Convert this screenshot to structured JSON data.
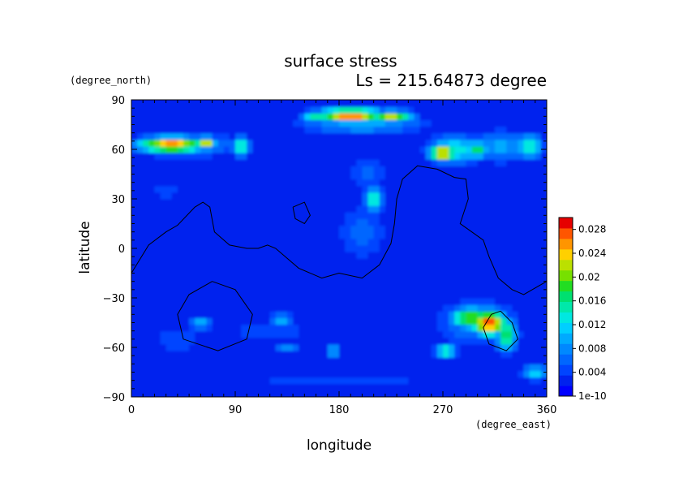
{
  "chart_data": {
    "type": "heatmap",
    "title": "surface stress",
    "subtitle": "Ls = 215.64873 degree",
    "xlabel": "longitude",
    "ylabel": "latitude",
    "x_units": "(degree_east)",
    "y_units": "(degree_north)",
    "xlim": [
      0,
      360
    ],
    "ylim": [
      -90,
      90
    ],
    "x_ticks": [
      0,
      90,
      180,
      270,
      360
    ],
    "y_ticks": [
      -90,
      -60,
      -30,
      0,
      30,
      60,
      90
    ],
    "x_tick_labels": [
      "0",
      "90",
      "180",
      "270",
      "360"
    ],
    "y_tick_labels": [
      "−90",
      "−60",
      "−30",
      "0",
      "30",
      "60",
      "90"
    ],
    "grid": false,
    "colorbar": {
      "labels": [
        "1e-10",
        "0.004",
        "0.008",
        "0.012",
        "0.016",
        "0.02",
        "0.024",
        "0.028"
      ],
      "values": [
        0,
        0.004,
        0.008,
        0.012,
        0.016,
        0.02,
        0.024,
        0.028
      ],
      "max": 0.03,
      "colors": [
        "#0000ff",
        "#0022ee",
        "#0044ff",
        "#0066ff",
        "#0088ff",
        "#00aaff",
        "#00cfff",
        "#00e8e0",
        "#00e8aa",
        "#00e070",
        "#22dd22",
        "#77e000",
        "#bbe000",
        "#ffd000",
        "#ff9500",
        "#ff5500",
        "#e60000"
      ]
    },
    "field": {
      "background": 0.002,
      "features": [
        {
          "lon": 190,
          "lat": 81,
          "rlon": 30,
          "rlat": 4,
          "v": 0.028
        },
        {
          "lon": 225,
          "lat": 80,
          "rlon": 20,
          "rlat": 4,
          "v": 0.022
        },
        {
          "lon": 160,
          "lat": 80,
          "rlon": 12,
          "rlat": 4,
          "v": 0.016
        },
        {
          "lon": 200,
          "lat": 76,
          "rlon": 60,
          "rlat": 7,
          "v": 0.01
        },
        {
          "lon": 35,
          "lat": 63,
          "rlon": 30,
          "rlat": 5,
          "v": 0.026
        },
        {
          "lon": 65,
          "lat": 64,
          "rlon": 8,
          "rlat": 4,
          "v": 0.024
        },
        {
          "lon": 45,
          "lat": 63,
          "rlon": 48,
          "rlat": 8,
          "v": 0.01
        },
        {
          "lon": 95,
          "lat": 62,
          "rlon": 8,
          "rlat": 6,
          "v": 0.016
        },
        {
          "lon": 270,
          "lat": 58,
          "rlon": 12,
          "rlat": 5,
          "v": 0.027
        },
        {
          "lon": 280,
          "lat": 60,
          "rlon": 25,
          "rlat": 9,
          "v": 0.014
        },
        {
          "lon": 300,
          "lat": 60,
          "rlon": 10,
          "rlat": 5,
          "v": 0.018
        },
        {
          "lon": 320,
          "lat": 62,
          "rlon": 25,
          "rlat": 10,
          "v": 0.01
        },
        {
          "lon": 345,
          "lat": 62,
          "rlon": 12,
          "rlat": 8,
          "v": 0.014
        },
        {
          "lon": 210,
          "lat": 30,
          "rlon": 8,
          "rlat": 8,
          "v": 0.016
        },
        {
          "lon": 200,
          "lat": 10,
          "rlon": 25,
          "rlat": 20,
          "v": 0.006
        },
        {
          "lon": 205,
          "lat": 45,
          "rlon": 20,
          "rlat": 12,
          "v": 0.006
        },
        {
          "lon": 310,
          "lat": -45,
          "rlon": 15,
          "rlat": 8,
          "v": 0.029
        },
        {
          "lon": 295,
          "lat": -42,
          "rlon": 20,
          "rlat": 7,
          "v": 0.02
        },
        {
          "lon": 325,
          "lat": -52,
          "rlon": 10,
          "rlat": 10,
          "v": 0.018
        },
        {
          "lon": 300,
          "lat": -45,
          "rlon": 40,
          "rlat": 16,
          "v": 0.008
        },
        {
          "lon": 272,
          "lat": -62,
          "rlon": 10,
          "rlat": 4,
          "v": 0.016
        },
        {
          "lon": 350,
          "lat": -75,
          "rlon": 12,
          "rlat": 5,
          "v": 0.012
        },
        {
          "lon": 60,
          "lat": -45,
          "rlon": 12,
          "rlat": 4,
          "v": 0.01
        },
        {
          "lon": 130,
          "lat": -43,
          "rlon": 12,
          "rlat": 4,
          "v": 0.01
        },
        {
          "lon": 175,
          "lat": -62,
          "rlon": 6,
          "rlat": 3,
          "v": 0.014
        },
        {
          "lon": 135,
          "lat": -60,
          "rlon": 12,
          "rlat": 4,
          "v": 0.008
        },
        {
          "lon": 120,
          "lat": -50,
          "rlon": 45,
          "rlat": 10,
          "v": 0.005
        },
        {
          "lon": 40,
          "lat": -55,
          "rlon": 30,
          "rlat": 10,
          "v": 0.005
        },
        {
          "lon": 180,
          "lat": -80,
          "rlon": 170,
          "rlat": 6,
          "v": 0.004
        },
        {
          "lon": 30,
          "lat": 35,
          "rlon": 15,
          "rlat": 8,
          "v": 0.005
        }
      ]
    },
    "contours": [
      {
        "points": [
          [
            0,
            -15
          ],
          [
            15,
            2
          ],
          [
            30,
            10
          ],
          [
            40,
            14
          ],
          [
            55,
            25
          ],
          [
            62,
            28
          ],
          [
            68,
            25
          ],
          [
            72,
            10
          ],
          [
            85,
            2
          ],
          [
            100,
            0
          ],
          [
            110,
            0
          ],
          [
            118,
            2
          ],
          [
            125,
            0
          ],
          [
            145,
            -12
          ],
          [
            165,
            -18
          ],
          [
            180,
            -15
          ],
          [
            200,
            -18
          ],
          [
            215,
            -10
          ],
          [
            225,
            3
          ],
          [
            228,
            15
          ],
          [
            230,
            30
          ],
          [
            235,
            42
          ],
          [
            248,
            50
          ],
          [
            265,
            48
          ],
          [
            280,
            43
          ],
          [
            290,
            42
          ],
          [
            292,
            30
          ],
          [
            285,
            15
          ],
          [
            295,
            10
          ],
          [
            305,
            5
          ],
          [
            310,
            -5
          ],
          [
            318,
            -18
          ],
          [
            330,
            -25
          ],
          [
            340,
            -28
          ],
          [
            355,
            -22
          ],
          [
            360,
            -20
          ]
        ]
      },
      {
        "points": [
          [
            70,
            -20
          ],
          [
            90,
            -25
          ],
          [
            105,
            -40
          ],
          [
            100,
            -55
          ],
          [
            75,
            -62
          ],
          [
            45,
            -55
          ],
          [
            40,
            -40
          ],
          [
            50,
            -28
          ],
          [
            70,
            -20
          ]
        ]
      },
      {
        "points": [
          [
            140,
            25
          ],
          [
            150,
            28
          ],
          [
            155,
            20
          ],
          [
            150,
            15
          ],
          [
            142,
            18
          ],
          [
            140,
            25
          ]
        ]
      },
      {
        "points": [
          [
            320,
            -38
          ],
          [
            330,
            -45
          ],
          [
            335,
            -55
          ],
          [
            325,
            -62
          ],
          [
            310,
            -58
          ],
          [
            305,
            -48
          ],
          [
            312,
            -40
          ],
          [
            320,
            -38
          ]
        ]
      }
    ]
  }
}
